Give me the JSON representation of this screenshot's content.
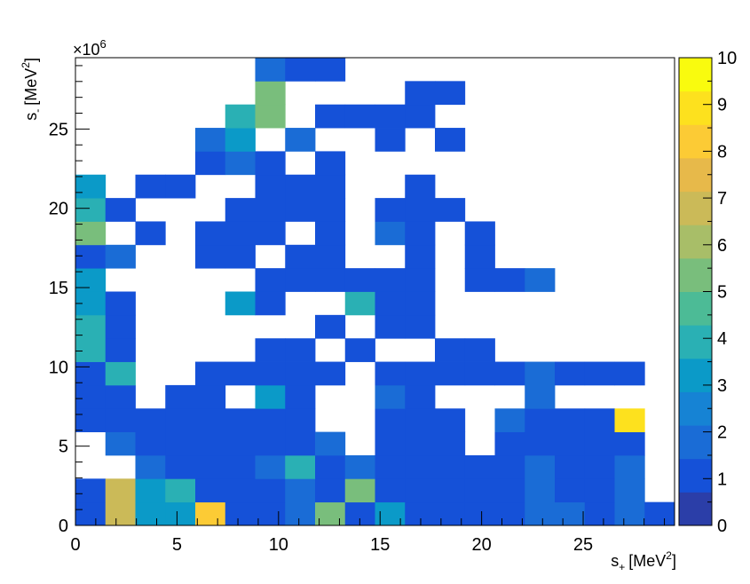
{
  "chart_data": {
    "type": "heatmap",
    "title": "",
    "xlabel_main": "s",
    "xlabel_sub": "+",
    "xlabel_unit": "[MeV",
    "xlabel_sup": "2",
    "xlabel_close": "]",
    "ylabel_main": "s",
    "ylabel_sub": "-",
    "ylabel_unit": "[MeV",
    "ylabel_sup": "2",
    "ylabel_close": "]",
    "exp_base": "×10",
    "exp_power": "6",
    "xlim": [
      0,
      29.5
    ],
    "ylim": [
      0,
      29.5
    ],
    "bin_width": 1.475,
    "xticks": [
      "0",
      "5",
      "10",
      "15",
      "20",
      "25"
    ],
    "yticks": [
      "0",
      "5",
      "10",
      "15",
      "20",
      "25"
    ],
    "zlim": [
      0,
      10
    ],
    "zticks": [
      "0",
      "1",
      "2",
      "3",
      "4",
      "5",
      "6",
      "7",
      "8",
      "9",
      "10"
    ],
    "palette": [
      "#2b3ea8",
      "#1551d8",
      "#1a6cd6",
      "#1683d4",
      "#0b9ac8",
      "#2ab0b4",
      "#4cbb96",
      "#79be7c",
      "#a8be68",
      "#cbba58",
      "#e7b94a",
      "#fccb35",
      "#fde11e",
      "#f9fb0e"
    ],
    "cells": [
      [
        [
          0,
          1
        ],
        [
          1,
          7
        ],
        [
          2,
          3
        ],
        [
          3,
          3
        ],
        [
          4,
          8
        ],
        [
          5,
          1
        ],
        [
          6,
          1
        ],
        [
          7,
          2
        ],
        [
          8,
          5
        ],
        [
          9,
          1
        ],
        [
          10,
          3
        ],
        [
          11,
          1
        ],
        [
          12,
          1
        ],
        [
          13,
          1
        ],
        [
          14,
          1
        ],
        [
          15,
          2
        ],
        [
          16,
          2
        ],
        [
          17,
          1
        ],
        [
          18,
          2
        ],
        [
          19,
          1
        ]
      ],
      [
        [
          0,
          1
        ],
        [
          1,
          7
        ],
        [
          2,
          3
        ],
        [
          3,
          4
        ],
        [
          4,
          1
        ],
        [
          5,
          1
        ],
        [
          6,
          1
        ],
        [
          7,
          2
        ],
        [
          8,
          1
        ],
        [
          9,
          5
        ],
        [
          10,
          1
        ],
        [
          11,
          1
        ],
        [
          12,
          1
        ],
        [
          13,
          1
        ],
        [
          14,
          1
        ],
        [
          15,
          2
        ],
        [
          16,
          1
        ],
        [
          17,
          1
        ],
        [
          18,
          2
        ]
      ],
      [
        [
          2,
          2
        ],
        [
          3,
          1
        ],
        [
          4,
          1
        ],
        [
          5,
          1
        ],
        [
          6,
          2
        ],
        [
          7,
          4
        ],
        [
          8,
          1
        ],
        [
          9,
          2
        ],
        [
          10,
          1
        ],
        [
          11,
          1
        ],
        [
          12,
          1
        ],
        [
          13,
          1
        ],
        [
          14,
          1
        ],
        [
          15,
          2
        ],
        [
          16,
          1
        ],
        [
          17,
          1
        ],
        [
          18,
          2
        ]
      ],
      [
        [
          1,
          2
        ],
        [
          2,
          1
        ],
        [
          3,
          1
        ],
        [
          4,
          1
        ],
        [
          5,
          1
        ],
        [
          6,
          1
        ],
        [
          7,
          1
        ],
        [
          8,
          2
        ],
        [
          10,
          1
        ],
        [
          11,
          1
        ],
        [
          12,
          1
        ],
        [
          14,
          1
        ],
        [
          15,
          1
        ],
        [
          16,
          1
        ],
        [
          17,
          1
        ],
        [
          18,
          1
        ]
      ],
      [
        [
          0,
          1
        ],
        [
          1,
          1
        ],
        [
          2,
          1
        ],
        [
          3,
          1
        ],
        [
          4,
          1
        ],
        [
          5,
          1
        ],
        [
          6,
          1
        ],
        [
          7,
          1
        ],
        [
          10,
          1
        ],
        [
          11,
          1
        ],
        [
          12,
          1
        ],
        [
          14,
          2
        ],
        [
          15,
          1
        ],
        [
          16,
          1
        ],
        [
          17,
          1
        ],
        [
          18,
          9
        ]
      ],
      [
        [
          0,
          1
        ],
        [
          1,
          1
        ],
        [
          3,
          1
        ],
        [
          4,
          1
        ],
        [
          6,
          3
        ],
        [
          7,
          1
        ],
        [
          10,
          2
        ],
        [
          11,
          1
        ],
        [
          15,
          2
        ]
      ],
      [
        [
          0,
          1
        ],
        [
          1,
          4
        ],
        [
          4,
          1
        ],
        [
          5,
          1
        ],
        [
          6,
          1
        ],
        [
          7,
          1
        ],
        [
          8,
          1
        ],
        [
          10,
          1
        ],
        [
          11,
          1
        ],
        [
          12,
          1
        ],
        [
          13,
          1
        ],
        [
          14,
          1
        ],
        [
          15,
          2
        ],
        [
          16,
          1
        ],
        [
          17,
          1
        ],
        [
          18,
          1
        ]
      ],
      [
        [
          0,
          4
        ],
        [
          1,
          1
        ],
        [
          6,
          1
        ],
        [
          7,
          1
        ],
        [
          9,
          1
        ],
        [
          12,
          1
        ],
        [
          13,
          1
        ]
      ],
      [
        [
          0,
          4
        ],
        [
          1,
          1
        ],
        [
          8,
          1
        ],
        [
          10,
          1
        ],
        [
          11,
          1
        ]
      ],
      [
        [
          0,
          3
        ],
        [
          1,
          1
        ],
        [
          5,
          3
        ],
        [
          6,
          1
        ],
        [
          9,
          4
        ],
        [
          10,
          1
        ],
        [
          11,
          1
        ]
      ],
      [
        [
          0,
          3
        ],
        [
          6,
          1
        ],
        [
          7,
          1
        ],
        [
          8,
          1
        ],
        [
          9,
          1
        ],
        [
          10,
          1
        ],
        [
          11,
          1
        ],
        [
          13,
          1
        ],
        [
          14,
          1
        ],
        [
          15,
          2
        ]
      ],
      [
        [
          0,
          1
        ],
        [
          1,
          2
        ],
        [
          4,
          1
        ],
        [
          5,
          1
        ],
        [
          7,
          1
        ],
        [
          8,
          1
        ],
        [
          11,
          1
        ],
        [
          13,
          1
        ]
      ],
      [
        [
          0,
          5
        ],
        [
          2,
          1
        ],
        [
          4,
          1
        ],
        [
          5,
          1
        ],
        [
          6,
          1
        ],
        [
          8,
          1
        ],
        [
          10,
          2
        ],
        [
          11,
          1
        ],
        [
          13,
          1
        ]
      ],
      [
        [
          0,
          4
        ],
        [
          1,
          1
        ],
        [
          5,
          1
        ],
        [
          6,
          1
        ],
        [
          7,
          1
        ],
        [
          8,
          1
        ],
        [
          10,
          1
        ],
        [
          11,
          1
        ],
        [
          12,
          1
        ]
      ],
      [
        [
          0,
          3
        ],
        [
          2,
          1
        ],
        [
          3,
          1
        ],
        [
          6,
          1
        ],
        [
          7,
          1
        ],
        [
          8,
          1
        ],
        [
          11,
          1
        ]
      ],
      [
        [
          4,
          1
        ],
        [
          5,
          2
        ],
        [
          6,
          1
        ],
        [
          8,
          1
        ]
      ],
      [
        [
          4,
          2
        ],
        [
          5,
          3
        ],
        [
          7,
          2
        ],
        [
          10,
          1
        ],
        [
          12,
          1
        ]
      ],
      [
        [
          5,
          4
        ],
        [
          6,
          5
        ],
        [
          8,
          1
        ],
        [
          9,
          1
        ],
        [
          10,
          1
        ],
        [
          11,
          1
        ]
      ],
      [
        [
          6,
          5
        ],
        [
          11,
          1
        ],
        [
          12,
          1
        ]
      ],
      [
        [
          6,
          2
        ],
        [
          7,
          1
        ],
        [
          8,
          1
        ]
      ]
    ]
  }
}
